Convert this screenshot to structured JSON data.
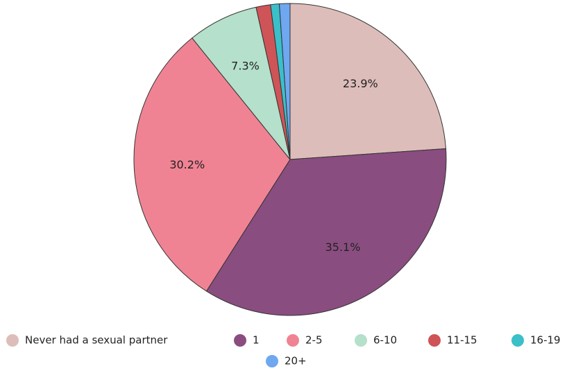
{
  "chart_data": {
    "type": "pie",
    "categories": [
      "Never had a sexual partner",
      "1",
      "2-5",
      "6-10",
      "11-15",
      "16-19",
      "20+"
    ],
    "values": [
      23.9,
      35.1,
      30.2,
      7.3,
      1.5,
      0.9,
      1.1
    ],
    "value_labels": [
      "23.9%",
      "35.1%",
      "30.2%",
      "7.3%",
      null,
      null,
      null
    ],
    "colors": [
      "#ddbdba",
      "#8a4d80",
      "#f08393",
      "#b5e0cb",
      "#cf5457",
      "#3bbfc9",
      "#6fa7f0"
    ],
    "legend": "bottom"
  }
}
